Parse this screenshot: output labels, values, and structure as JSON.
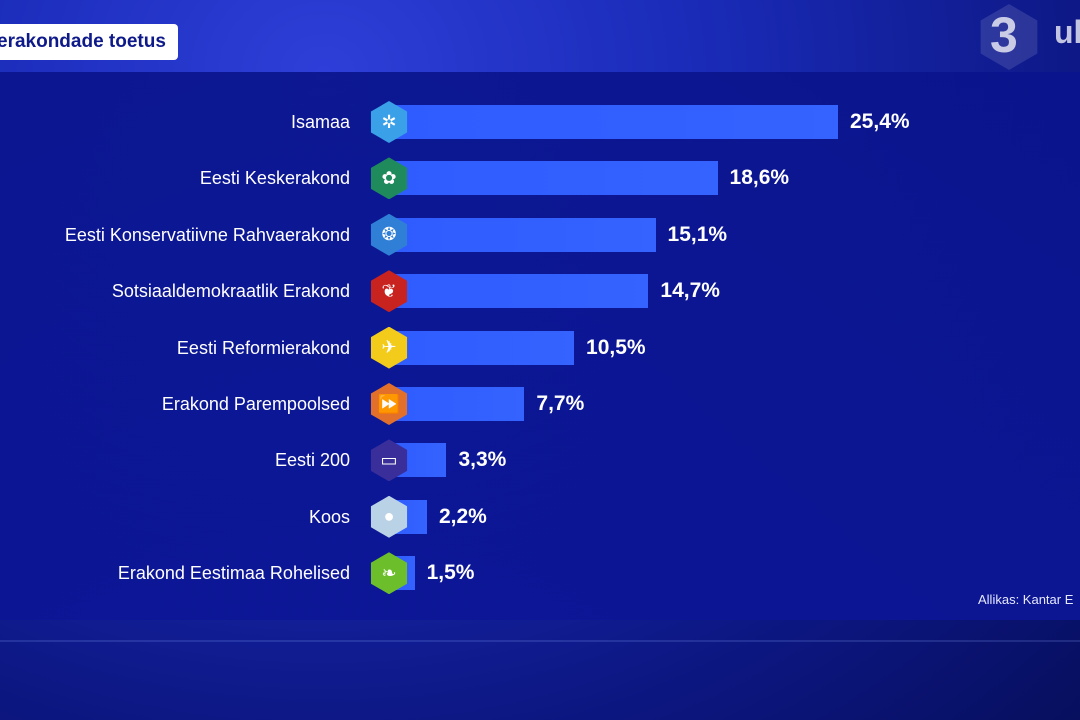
{
  "header": {
    "title": "erakondade toetus",
    "logo_number": "3",
    "logo_text": "ul"
  },
  "source_note": "Allikas: Kantar E",
  "colors": {
    "bar": "#2f5cff",
    "panel": "#0a148c",
    "background": "#1a2bb8"
  },
  "chart_data": {
    "type": "bar",
    "orientation": "horizontal",
    "title": "erakondade toetus",
    "categories": [
      "Isamaa",
      "Eesti Keskerakond",
      "Eesti Konservatiivne Rahvaerakond",
      "Sotsiaaldemokraatlik Erakond",
      "Eesti Reformierakond",
      "Erakond Parempoolsed",
      "Eesti 200",
      "Koos",
      "Erakond Eestimaa Rohelised"
    ],
    "values": [
      25.4,
      18.6,
      15.1,
      14.7,
      10.5,
      7.7,
      3.3,
      2.2,
      1.5
    ],
    "value_labels": [
      "25,4%",
      "18,6%",
      "15,1%",
      "14,7%",
      "10,5%",
      "7,7%",
      "3,3%",
      "2,2%",
      "1,5%"
    ],
    "badges": [
      {
        "icon": "isamaa-logo-icon",
        "color": "#3aa0e8",
        "glyph": "✲"
      },
      {
        "icon": "keskerakond-logo-icon",
        "color": "#1f8a5c",
        "glyph": "✿"
      },
      {
        "icon": "ekre-logo-icon",
        "color": "#2f7fd6",
        "glyph": "❂"
      },
      {
        "icon": "sde-logo-icon",
        "color": "#c8231f",
        "glyph": "❦"
      },
      {
        "icon": "reform-logo-icon",
        "color": "#f3cc1b",
        "glyph": "✈"
      },
      {
        "icon": "parempoolsed-logo-icon",
        "color": "#e2702a",
        "glyph": "⏩"
      },
      {
        "icon": "eesti200-logo-icon",
        "color": "#3a2f9a",
        "glyph": "▭"
      },
      {
        "icon": "koos-logo-icon",
        "color": "#b9d2e6",
        "glyph": "●"
      },
      {
        "icon": "rohelised-logo-icon",
        "color": "#6cbf2a",
        "glyph": "❧"
      }
    ],
    "xlim": [
      0,
      25.4
    ],
    "grid": false,
    "legend": "none"
  }
}
